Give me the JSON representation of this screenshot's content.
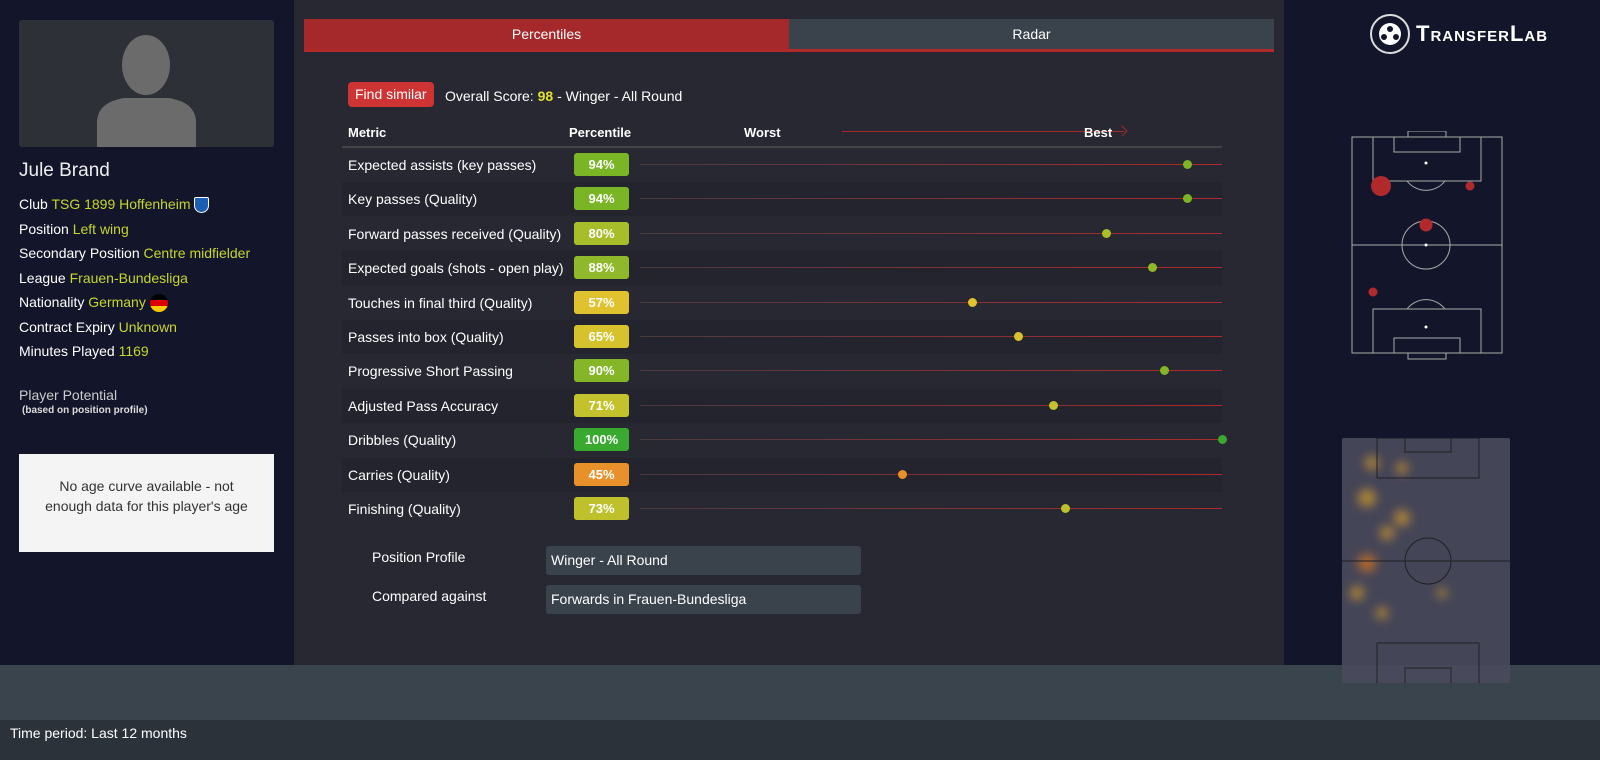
{
  "player": {
    "name": "Jule Brand",
    "fields": [
      {
        "label": "Club",
        "value": "TSG 1899 Hoffenheim"
      },
      {
        "label": "Position",
        "value": "Left wing"
      },
      {
        "label": "Secondary Position",
        "value": "Centre midfielder"
      },
      {
        "label": "League",
        "value": "Frauen-Bundesliga"
      },
      {
        "label": "Nationality",
        "value": "Germany"
      },
      {
        "label": "Contract Expiry",
        "value": "Unknown"
      },
      {
        "label": "Minutes Played",
        "value": "1169"
      }
    ],
    "potential_title": "Player Potential",
    "potential_sub": "(based on position profile)",
    "age_curve_msg": "No age curve available - not enough data for this player's age"
  },
  "tabs": [
    "Percentiles",
    "Radar"
  ],
  "find_similar": "Find similar",
  "score": {
    "prefix": "Overall Score:",
    "value": "98",
    "suffix": "- Winger - All Round"
  },
  "table": {
    "headers": {
      "metric": "Metric",
      "percentile": "Percentile",
      "worst": "Worst",
      "best": "Best"
    },
    "rows": [
      {
        "metric": "Expected assists (key passes)",
        "label": "94%",
        "value": 94,
        "color": "#7ab526"
      },
      {
        "metric": "Key passes (Quality)",
        "label": "94%",
        "value": 94,
        "color": "#7ab526"
      },
      {
        "metric": "Forward passes received (Quality)",
        "label": "80%",
        "value": 80,
        "color": "#a8bd2a"
      },
      {
        "metric": "Expected goals (shots - open play)",
        "label": "88%",
        "value": 88,
        "color": "#8fb82a"
      },
      {
        "metric": "Touches in final third (Quality)",
        "label": "57%",
        "value": 57,
        "color": "#e0c22e"
      },
      {
        "metric": "Passes into box (Quality)",
        "label": "65%",
        "value": 65,
        "color": "#d6c22c"
      },
      {
        "metric": "Progressive Short Passing",
        "label": "90%",
        "value": 90,
        "color": "#84b628"
      },
      {
        "metric": "Adjusted Pass Accuracy",
        "label": "71%",
        "value": 71,
        "color": "#c3c22c"
      },
      {
        "metric": "Dribbles (Quality)",
        "label": "100%",
        "value": 100,
        "color": "#3aa92f"
      },
      {
        "metric": "Carries (Quality)",
        "label": "45%",
        "value": 45,
        "color": "#e8902a"
      },
      {
        "metric": "Finishing (Quality)",
        "label": "73%",
        "value": 73,
        "color": "#bfc12c"
      }
    ]
  },
  "filters": [
    {
      "label": "Position Profile",
      "value": "Winger - All Round"
    },
    {
      "label": "Compared against",
      "value": "Forwards in Frauen-Bundesliga"
    }
  ],
  "logo": "TransferLab",
  "time_period": "Time period: Last 12 months"
}
